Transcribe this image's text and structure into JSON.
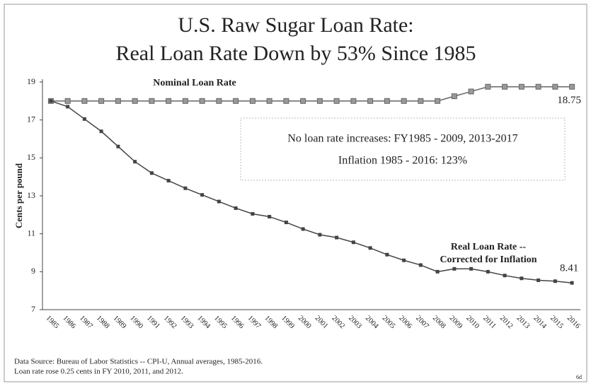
{
  "chart_data": {
    "type": "line",
    "title": [
      "U.S. Raw Sugar Loan Rate:",
      "Real Loan Rate Down by 53% Since 1985"
    ],
    "y_label": "Cents per pound",
    "categories": [
      "1985",
      "1986",
      "1987",
      "1988",
      "1989",
      "1990",
      "1991",
      "1992",
      "1993",
      "1994",
      "1995",
      "1996",
      "1997",
      "1998",
      "1999",
      "2000",
      "2001",
      "2002",
      "2003",
      "2004",
      "2005",
      "2006",
      "2007",
      "2008",
      "2009",
      "2010",
      "2011",
      "2012",
      "2013",
      "2014",
      "2015",
      "2016"
    ],
    "series": [
      {
        "name": "Nominal Loan Rate",
        "color": "#666666",
        "marker": "square",
        "values": [
          18,
          18,
          18,
          18,
          18,
          18,
          18,
          18,
          18,
          18,
          18,
          18,
          18,
          18,
          18,
          18,
          18,
          18,
          18,
          18,
          18,
          18,
          18,
          18,
          18.25,
          18.5,
          18.75,
          18.75,
          18.75,
          18.75,
          18.75,
          18.75
        ]
      },
      {
        "name": [
          "Real Loan Rate --",
          "Corrected for Inflation"
        ],
        "color": "#444444",
        "marker": "small",
        "values": [
          18,
          17.7,
          17.05,
          16.4,
          15.6,
          14.8,
          14.2,
          13.8,
          13.4,
          13.05,
          12.7,
          12.35,
          12.05,
          11.9,
          11.6,
          11.25,
          10.95,
          10.8,
          10.55,
          10.25,
          9.9,
          9.6,
          9.35,
          9.0,
          9.15,
          9.15,
          9.0,
          8.8,
          8.65,
          8.55,
          8.5,
          8.41
        ]
      }
    ],
    "annotation_box": [
      "No loan rate increases: FY1985 - 2009, 2013-2017",
      "Inflation 1985 - 2016: 123%"
    ],
    "ylim": [
      7,
      19
    ],
    "yticks": [
      7,
      9,
      11,
      13,
      15,
      17,
      19
    ],
    "footnotes": [
      "Data Source: Bureau of Labor Statistics -- CPI-U, Annual averages, 1985-2016.",
      "Loan rate rose 0.25 cents in FY 2010, 2011, and 2012."
    ],
    "page_number": "6d"
  }
}
